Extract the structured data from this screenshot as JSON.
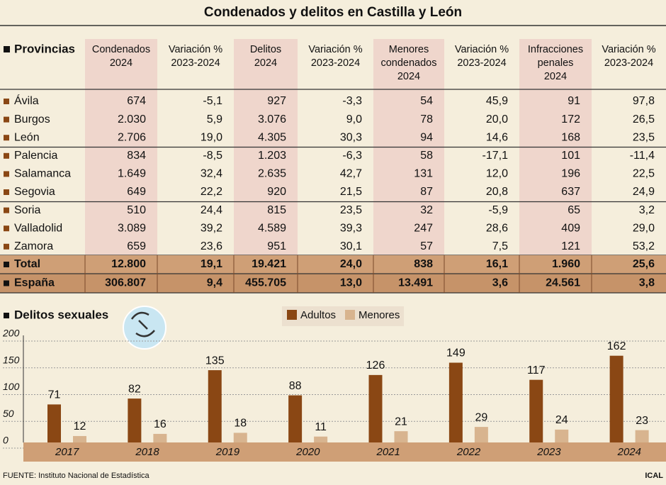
{
  "title": "Condenados y delitos en Castilla y León",
  "table": {
    "first_header": "Provincias",
    "columns": [
      [
        "Condenados",
        "2024"
      ],
      [
        "Variación %",
        "2023-2024"
      ],
      [
        "Delitos",
        "2024"
      ],
      [
        "Variación %",
        "2023-2024"
      ],
      [
        "Menores",
        "condenados",
        "2024"
      ],
      [
        "Variación %",
        "2023-2024"
      ],
      [
        "Infracciones",
        "penales",
        "2024"
      ],
      [
        "Variación %",
        "2023-2024"
      ]
    ],
    "rows": [
      [
        "Ávila",
        "674",
        "-5,1",
        "927",
        "-3,3",
        "54",
        "45,9",
        "91",
        "97,8"
      ],
      [
        "Burgos",
        "2.030",
        "5,9",
        "3.076",
        "9,0",
        "78",
        "20,0",
        "172",
        "26,5"
      ],
      [
        "León",
        "2.706",
        "19,0",
        "4.305",
        "30,3",
        "94",
        "14,6",
        "168",
        "23,5"
      ],
      [
        "Palencia",
        "834",
        "-8,5",
        "1.203",
        "-6,3",
        "58",
        "-17,1",
        "101",
        "-11,4"
      ],
      [
        "Salamanca",
        "1.649",
        "32,4",
        "2.635",
        "42,7",
        "131",
        "12,0",
        "196",
        "22,5"
      ],
      [
        "Segovia",
        "649",
        "22,2",
        "920",
        "21,5",
        "87",
        "20,8",
        "637",
        "24,9"
      ],
      [
        "Soria",
        "510",
        "24,4",
        "815",
        "23,5",
        "32",
        "-5,9",
        "65",
        "3,2"
      ],
      [
        "Valladolid",
        "3.089",
        "39,2",
        "4.589",
        "39,3",
        "247",
        "28,6",
        "409",
        "29,0"
      ],
      [
        "Zamora",
        "659",
        "23,6",
        "951",
        "30,1",
        "57",
        "7,5",
        "121",
        "53,2"
      ]
    ],
    "total": [
      "Total",
      "12.800",
      "19,1",
      "19.421",
      "24,0",
      "838",
      "16,1",
      "1.960",
      "25,6"
    ],
    "spain": [
      "España",
      "306.807",
      "9,4",
      "455.705",
      "13,0",
      "13.491",
      "3,6",
      "24.561",
      "3,8"
    ]
  },
  "chart_data": {
    "type": "bar",
    "title": "Delitos sexuales",
    "categories": [
      "2017",
      "2018",
      "2019",
      "2020",
      "2021",
      "2022",
      "2023",
      "2024"
    ],
    "series": [
      {
        "name": "Adultos",
        "color": "#8a4714",
        "values": [
          71,
          82,
          135,
          88,
          126,
          149,
          117,
          162
        ]
      },
      {
        "name": "Menores",
        "color": "#d8b48f",
        "values": [
          12,
          16,
          18,
          11,
          21,
          29,
          24,
          23
        ]
      }
    ],
    "ylim": [
      0,
      200
    ],
    "yticks": [
      0,
      50,
      100,
      150,
      200
    ],
    "grid": true,
    "legend": "top"
  },
  "source": "FUENTE: Instituto Nacional de Estadística",
  "credit": "ICAL"
}
